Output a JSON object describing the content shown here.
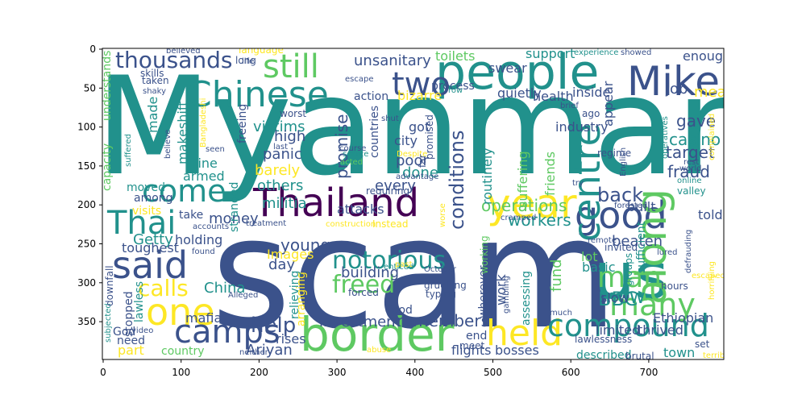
{
  "image": {
    "x_ticks": [
      "0",
      "100",
      "200",
      "300",
      "400",
      "500",
      "600",
      "700"
    ],
    "y_ticks": [
      "0",
      "50",
      "100",
      "150",
      "200",
      "250",
      "300",
      "350"
    ]
  },
  "palette": [
    "#440154",
    "#3b528b",
    "#21918c",
    "#5ec962",
    "#fde725"
  ],
  "words": [
    {
      "t": "Myanmar",
      "c": "#21918c"
    },
    {
      "t": "scam",
      "c": "#3b528b"
    },
    {
      "t": "people",
      "c": "#21918c"
    },
    {
      "t": "Mike",
      "c": "#3b528b"
    },
    {
      "t": "Chinese",
      "c": "#21918c"
    },
    {
      "t": "two",
      "c": "#3b528b"
    },
    {
      "t": "still",
      "c": "#5ec962"
    },
    {
      "t": "thousands",
      "c": "#3b528b"
    },
    {
      "t": "Thailand",
      "c": "#440154"
    },
    {
      "t": "year",
      "c": "#fde725"
    },
    {
      "t": "good",
      "c": "#3b528b"
    },
    {
      "t": "come",
      "c": "#21918c"
    },
    {
      "t": "Thai",
      "c": "#21918c"
    },
    {
      "t": "centre",
      "c": "#21918c"
    },
    {
      "t": "said",
      "c": "#3b528b"
    },
    {
      "t": "one",
      "c": "#fde725"
    },
    {
      "t": "camps",
      "c": "#3b528b"
    },
    {
      "t": "border",
      "c": "#5ec962"
    },
    {
      "t": "held",
      "c": "#fde725"
    },
    {
      "t": "compound",
      "c": "#21918c"
    },
    {
      "t": "us",
      "c": "#21918c"
    },
    {
      "t": "along",
      "c": "#5ec962"
    },
    {
      "t": "many",
      "c": "#5ec962"
    },
    {
      "t": "man",
      "c": "#5ec962"
    },
    {
      "t": "notorious",
      "c": "#21918c"
    },
    {
      "t": "freed",
      "c": "#5ec962"
    },
    {
      "t": "calls",
      "c": "#fde725"
    },
    {
      "t": "help",
      "c": "#3b528b"
    },
    {
      "t": "BBC",
      "c": "#21918c"
    },
    {
      "t": "now",
      "c": "#21918c"
    },
    {
      "t": "back",
      "c": "#3b528b"
    },
    {
      "t": "conditions",
      "c": "#3b528b"
    },
    {
      "t": "fraud",
      "c": "#3b528b"
    },
    {
      "t": "target",
      "c": "#3b528b"
    },
    {
      "t": "casino",
      "c": "#21918c"
    },
    {
      "t": "gave",
      "c": "#3b528b"
    },
    {
      "t": "job",
      "c": "#3b528b"
    },
    {
      "t": "meals",
      "c": "#fde725"
    },
    {
      "t": "unsanitary",
      "c": "#3b528b"
    },
    {
      "t": "toilets",
      "c": "#5ec962"
    },
    {
      "t": "support",
      "c": "#21918c"
    },
    {
      "t": "enough",
      "c": "#3b528b"
    },
    {
      "t": "swear",
      "c": "#3b528b"
    },
    {
      "t": "poor",
      "c": "#3b528b"
    },
    {
      "t": "city",
      "c": "#3b528b"
    },
    {
      "t": "got",
      "c": "#3b528b"
    },
    {
      "t": "done",
      "c": "#21918c"
    },
    {
      "t": "every",
      "c": "#3b528b"
    },
    {
      "t": "operations",
      "c": "#5ec962"
    },
    {
      "t": "workers",
      "c": "#21918c"
    },
    {
      "t": "promise",
      "c": "#3b528b"
    },
    {
      "t": "victims",
      "c": "#21918c"
    },
    {
      "t": "high",
      "c": "#3b528b"
    },
    {
      "t": "panic",
      "c": "#3b528b"
    },
    {
      "t": "barely",
      "c": "#fde725"
    },
    {
      "t": "others",
      "c": "#21918c"
    },
    {
      "t": "militia",
      "c": "#21918c"
    },
    {
      "t": "young",
      "c": "#3b528b"
    },
    {
      "t": "day",
      "c": "#3b528b"
    },
    {
      "t": "Images",
      "c": "#fde725"
    },
    {
      "t": "building",
      "c": "#3b528b"
    },
    {
      "t": "investment",
      "c": "#3b528b"
    },
    {
      "t": "remembers",
      "c": "#3b528b"
    },
    {
      "t": "flights",
      "c": "#3b528b"
    },
    {
      "t": "bosses",
      "c": "#3b528b"
    },
    {
      "t": "Ariyan",
      "c": "#3b528b"
    },
    {
      "t": "rises",
      "c": "#3b528b"
    },
    {
      "t": "money",
      "c": "#3b528b"
    },
    {
      "t": "Getty",
      "c": "#21918c"
    },
    {
      "t": "holding",
      "c": "#3b528b"
    },
    {
      "t": "toughest",
      "c": "#3b528b"
    },
    {
      "t": "China",
      "c": "#21918c"
    },
    {
      "t": "part",
      "c": "#fde725"
    },
    {
      "t": "country",
      "c": "#5ec962"
    },
    {
      "t": "mafia",
      "c": "#3b528b"
    },
    {
      "t": "need",
      "c": "#3b528b"
    },
    {
      "t": "stopped",
      "c": "#3b528b"
    },
    {
      "t": "God",
      "c": "#3b528b"
    },
    {
      "t": "lawless",
      "c": "#21918c"
    },
    {
      "t": "fund",
      "c": "#5ec962"
    },
    {
      "t": "basic",
      "c": "#21918c"
    },
    {
      "t": "limited",
      "c": "#3b528b"
    },
    {
      "t": "slow",
      "c": "#3b528b"
    },
    {
      "t": "Ethiopian",
      "c": "#3b528b"
    },
    {
      "t": "thrived",
      "c": "#3b528b"
    },
    {
      "t": "town",
      "c": "#21918c"
    },
    {
      "t": "described",
      "c": "#21918c"
    },
    {
      "t": "beaten",
      "c": "#3b528b"
    },
    {
      "t": "built",
      "c": "#3b528b"
    },
    {
      "t": "told",
      "c": "#3b528b"
    },
    {
      "t": "industry",
      "c": "#3b528b"
    },
    {
      "t": "health",
      "c": "#3b528b"
    },
    {
      "t": "inside",
      "c": "#3b528b"
    },
    {
      "t": "quietly",
      "c": "#3b528b"
    },
    {
      "t": "action",
      "c": "#3b528b"
    },
    {
      "t": "bizarre",
      "c": "#fde725"
    },
    {
      "t": "process",
      "c": "#3b528b"
    },
    {
      "t": "appear",
      "c": "#3b528b"
    },
    {
      "t": "made",
      "c": "#21918c"
    },
    {
      "t": "makeshift",
      "c": "#21918c"
    },
    {
      "t": "armed",
      "c": "#21918c"
    },
    {
      "t": "line",
      "c": "#21918c"
    },
    {
      "t": "moved",
      "c": "#21918c"
    },
    {
      "t": "among",
      "c": "#3b528b"
    },
    {
      "t": "visits",
      "c": "#fde725"
    },
    {
      "t": "take",
      "c": "#3b528b"
    },
    {
      "t": "attacks",
      "c": "#3b528b"
    },
    {
      "t": "stranded",
      "c": "#21918c"
    },
    {
      "t": "countries",
      "c": "#3b528b"
    },
    {
      "t": "routinely",
      "c": "#21918c"
    },
    {
      "t": "suffering",
      "c": "#5ec962"
    },
    {
      "t": "friends",
      "c": "#5ec962"
    },
    {
      "t": "lot",
      "c": "#5ec962"
    },
    {
      "t": "work",
      "c": "#3b528b"
    },
    {
      "t": "wherever",
      "c": "#3b528b"
    },
    {
      "t": "arranging",
      "c": "#fde725"
    },
    {
      "t": "relieving",
      "c": "#21918c"
    },
    {
      "t": "food",
      "c": "#3b528b"
    },
    {
      "t": "end",
      "c": "#3b528b"
    },
    {
      "t": "meet",
      "c": "#3b528b"
    },
    {
      "t": "working",
      "c": "#5ec962"
    },
    {
      "t": "sufficient",
      "c": "#21918c"
    },
    {
      "t": "invited",
      "c": "#3b528b"
    },
    {
      "t": "groups",
      "c": "#21918c"
    },
    {
      "t": "assessing",
      "c": "#21918c"
    },
    {
      "t": "capacity",
      "c": "#5ec962"
    },
    {
      "t": "understands",
      "c": "#5ec962"
    },
    {
      "t": "freeing",
      "c": "#3b528b"
    },
    {
      "t": "worst",
      "c": "#3b528b"
    },
    {
      "t": "language",
      "c": "#fde725"
    },
    {
      "t": "escape",
      "c": "#3b528b"
    },
    {
      "t": "skills",
      "c": "#3b528b"
    },
    {
      "t": "taken",
      "c": "#3b528b"
    },
    {
      "t": "shaky",
      "c": "#3b528b"
    },
    {
      "t": "believed",
      "c": "#3b528b"
    },
    {
      "t": "life",
      "c": "#3b528b"
    },
    {
      "t": "long",
      "c": "#3b528b"
    },
    {
      "t": "experience",
      "c": "#21918c"
    },
    {
      "t": "showed",
      "c": "#3b528b"
    },
    {
      "t": "brief",
      "c": "#3b528b"
    },
    {
      "t": "ago",
      "c": "#3b528b"
    },
    {
      "t": "regime",
      "c": "#3b528b"
    },
    {
      "t": "English",
      "c": "#3b528b"
    },
    {
      "t": "operatives",
      "c": "#21918c"
    },
    {
      "t": "complained",
      "c": "#fde725"
    },
    {
      "t": "rest",
      "c": "#3b528b"
    },
    {
      "t": "online",
      "c": "#21918c"
    },
    {
      "t": "world",
      "c": "#3b528b"
    },
    {
      "t": "valley",
      "c": "#21918c"
    },
    {
      "t": "try",
      "c": "#3b528b"
    },
    {
      "t": "forested",
      "c": "#3b528b"
    },
    {
      "t": "remote",
      "c": "#3b528b"
    },
    {
      "t": "lured",
      "c": "#3b528b"
    },
    {
      "t": "defrauding",
      "c": "#3b528b"
    },
    {
      "t": "escaped",
      "c": "#fde725"
    },
    {
      "t": "horrifying",
      "c": "#fde725"
    },
    {
      "t": "hours",
      "c": "#3b528b"
    },
    {
      "t": "set",
      "c": "#3b528b"
    },
    {
      "t": "terrible",
      "c": "#fde725"
    },
    {
      "t": "brutal",
      "c": "#3b528b"
    },
    {
      "t": "lawlessness",
      "c": "#3b528b"
    },
    {
      "t": "gambling",
      "c": "#3b528b"
    },
    {
      "t": "much",
      "c": "#3b528b"
    },
    {
      "t": "typing",
      "c": "#3b528b"
    },
    {
      "t": "gruelling",
      "c": "#3b528b"
    },
    {
      "t": "October",
      "c": "#3b528b"
    },
    {
      "t": "enticed",
      "c": "#21918c"
    },
    {
      "t": "past",
      "c": "#fde725"
    },
    {
      "t": "forced",
      "c": "#3b528b"
    },
    {
      "t": "abuse",
      "c": "#fde725"
    },
    {
      "t": "Alleged",
      "c": "#3b528b"
    },
    {
      "t": "subjected",
      "c": "#21918c"
    },
    {
      "t": "video",
      "c": "#3b528b"
    },
    {
      "t": "neither",
      "c": "#3b528b"
    },
    {
      "t": "downfall",
      "c": "#3b528b"
    },
    {
      "t": "found",
      "c": "#3b528b"
    },
    {
      "t": "treatment",
      "c": "#3b528b"
    },
    {
      "t": "accounts",
      "c": "#3b528b"
    },
    {
      "t": "requiring",
      "c": "#3b528b"
    },
    {
      "t": "construction",
      "c": "#fde725"
    },
    {
      "t": "Instead",
      "c": "#fde725"
    },
    {
      "t": "worse",
      "c": "#fde725"
    },
    {
      "t": "cramped",
      "c": "#3b528b"
    },
    {
      "t": "promised",
      "c": "#3b528b"
    },
    {
      "t": "Despite",
      "c": "#fde725"
    },
    {
      "t": "advantage",
      "c": "#3b528b"
    },
    {
      "t": "acted",
      "c": "#5ec962"
    },
    {
      "t": "course",
      "c": "#3b528b"
    },
    {
      "t": "scarce",
      "c": "#21918c"
    },
    {
      "t": "shut",
      "c": "#3b528b"
    },
    {
      "t": "last",
      "c": "#3b528b"
    },
    {
      "t": "seen",
      "c": "#3b528b"
    },
    {
      "t": "Bangladeshi",
      "c": "#fde725"
    },
    {
      "t": "suffered",
      "c": "#21918c"
    },
    {
      "t": "believe",
      "c": "#3b528b"
    },
    {
      "t": "row",
      "c": "#21918c"
    },
    {
      "t": "far",
      "c": "#3b528b"
    }
  ]
}
